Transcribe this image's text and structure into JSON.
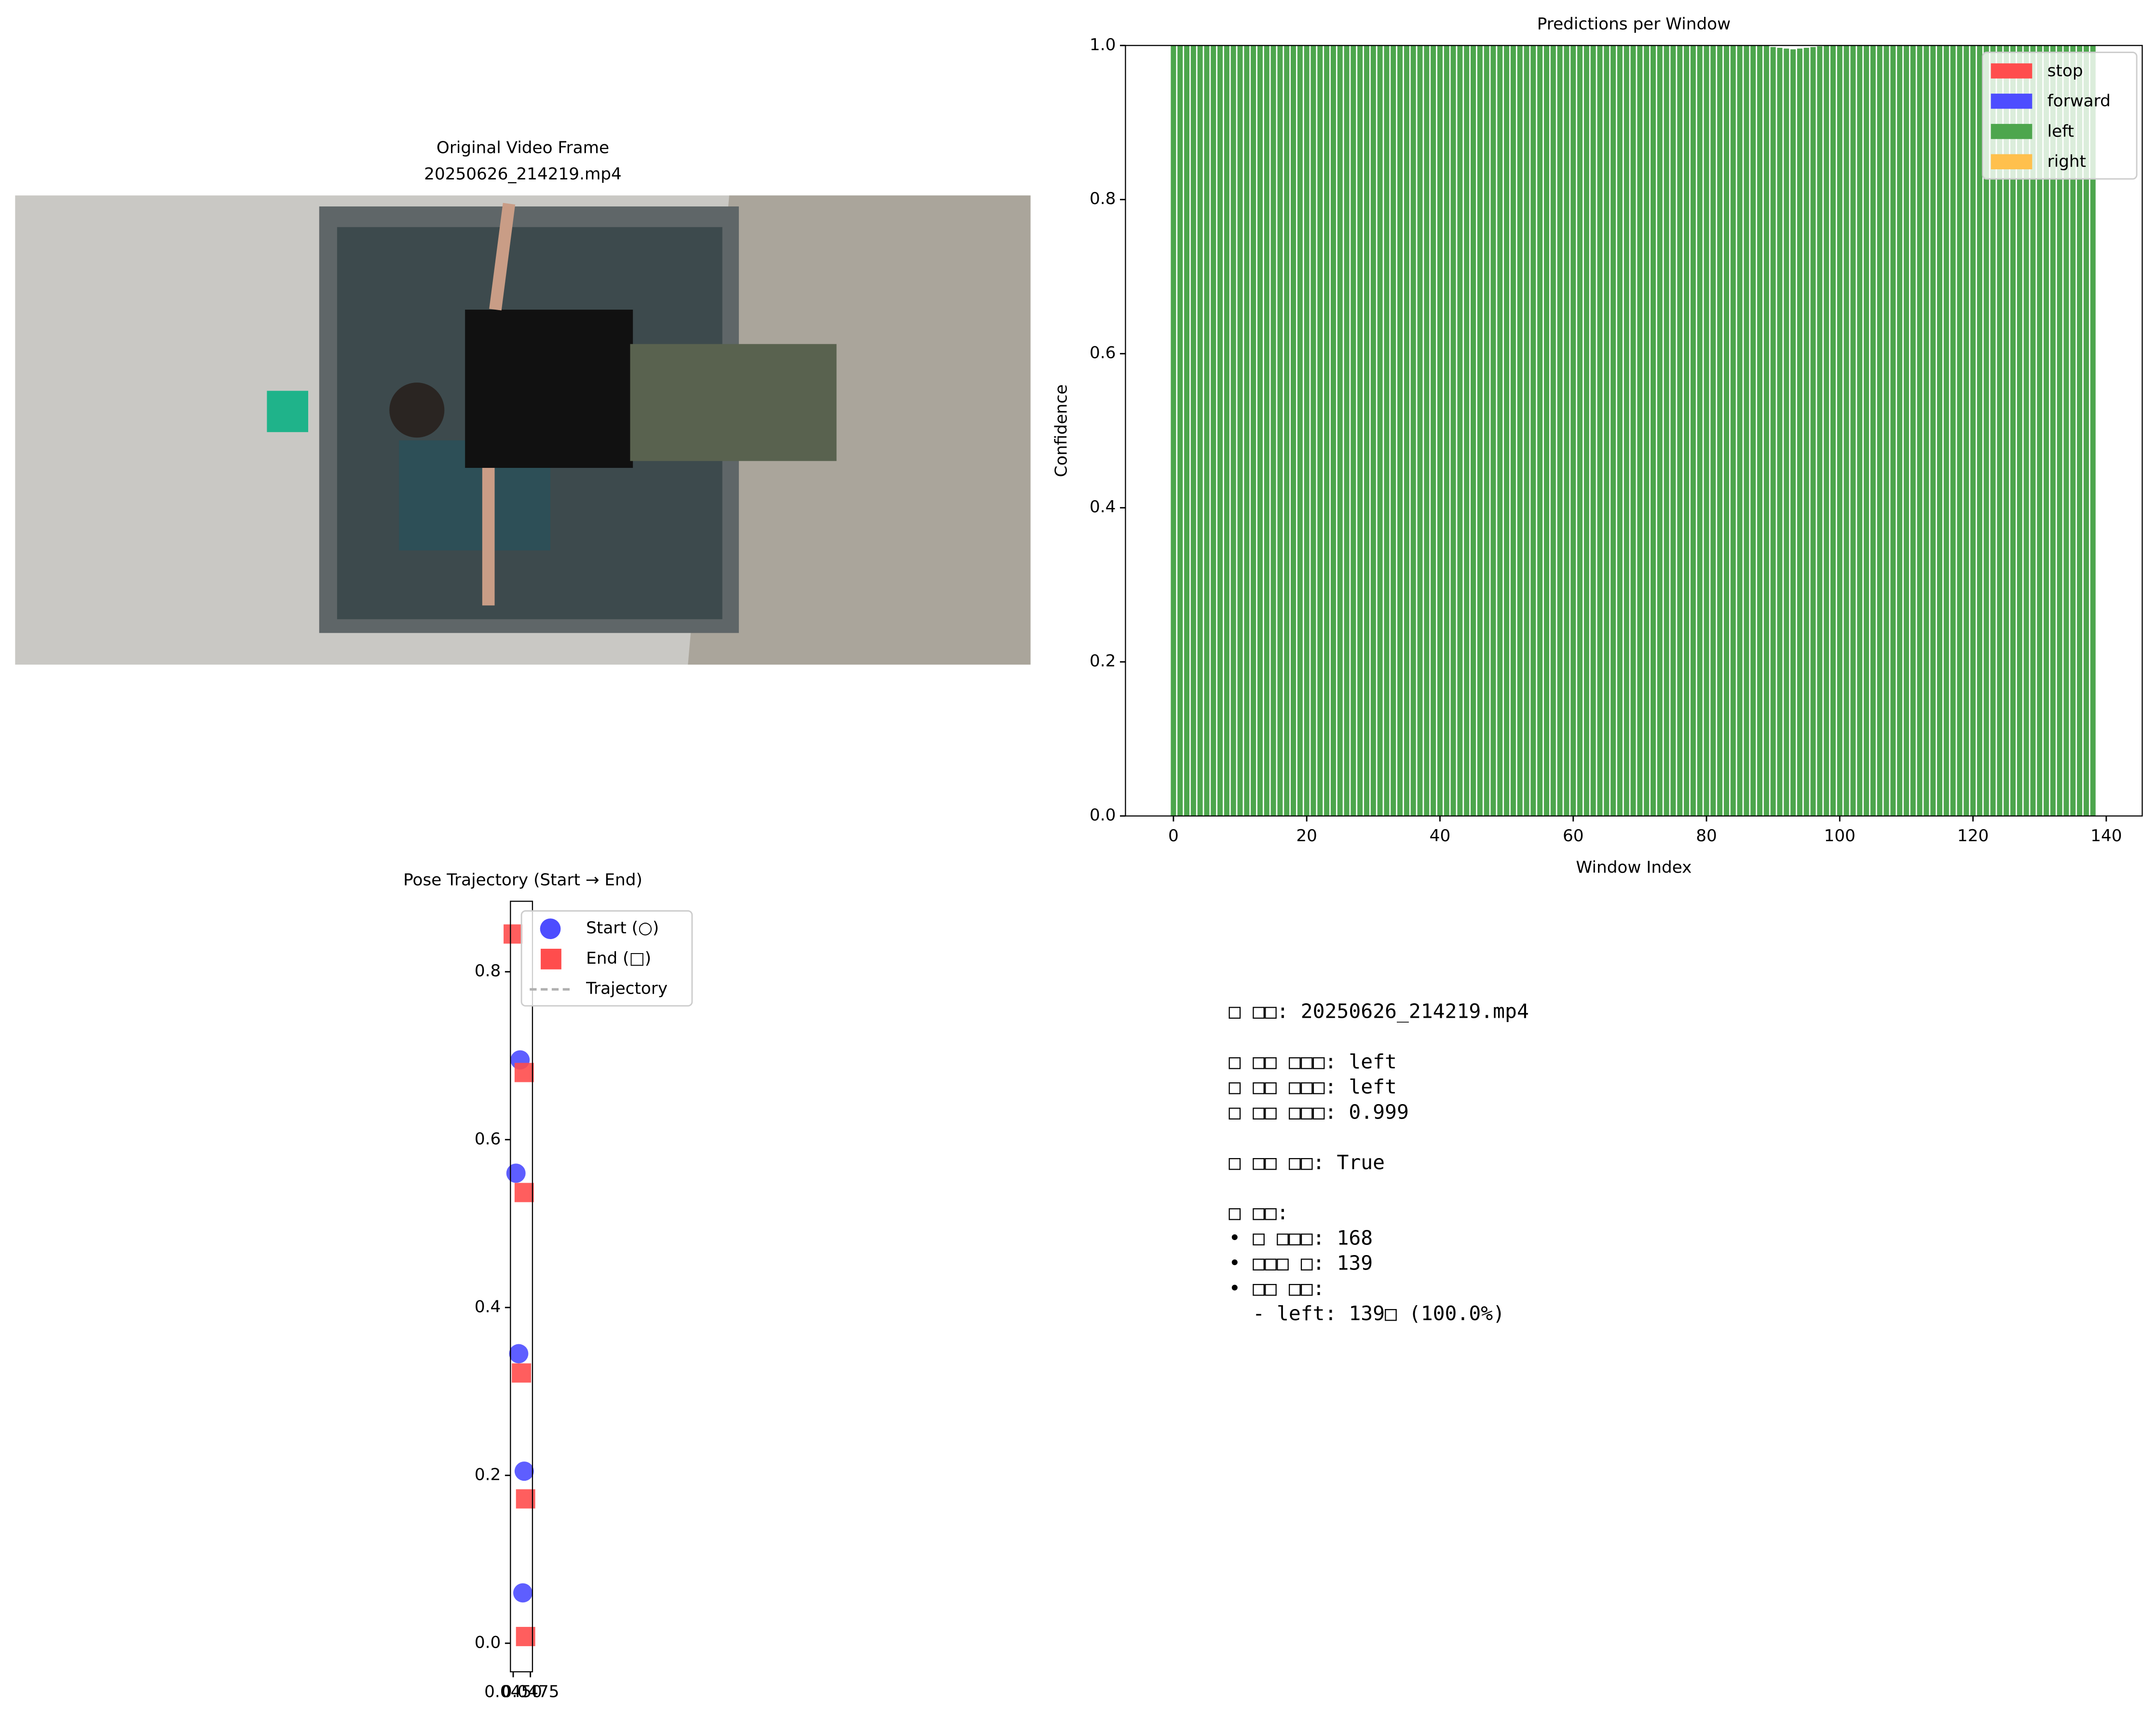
{
  "chart_data": [
    {
      "type": "image",
      "title": [
        "Original Video Frame",
        "20250626_214219.mp4"
      ]
    },
    {
      "type": "bar",
      "stacked": true,
      "title": "Predictions per Window",
      "xlabel": "Window Index",
      "ylabel": "Confidence",
      "x": [
        0,
        1,
        2,
        3,
        4,
        5,
        6,
        7,
        8,
        9,
        10,
        11,
        12,
        13,
        14,
        15,
        16,
        17,
        18,
        19,
        20,
        21,
        22,
        23,
        24,
        25,
        26,
        27,
        28,
        29,
        30,
        31,
        32,
        33,
        34,
        35,
        36,
        37,
        38,
        39,
        40,
        41,
        42,
        43,
        44,
        45,
        46,
        47,
        48,
        49,
        50,
        51,
        52,
        53,
        54,
        55,
        56,
        57,
        58,
        59,
        60,
        61,
        62,
        63,
        64,
        65,
        66,
        67,
        68,
        69,
        70,
        71,
        72,
        73,
        74,
        75,
        76,
        77,
        78,
        79,
        80,
        81,
        82,
        83,
        84,
        85,
        86,
        87,
        88,
        89,
        90,
        91,
        92,
        93,
        94,
        95,
        96,
        97,
        98,
        99,
        100,
        101,
        102,
        103,
        104,
        105,
        106,
        107,
        108,
        109,
        110,
        111,
        112,
        113,
        114,
        115,
        116,
        117,
        118,
        119,
        120,
        121,
        122,
        123,
        124,
        125,
        126,
        127,
        128,
        129,
        130,
        131,
        132,
        133,
        134,
        135,
        136,
        137,
        138
      ],
      "series": [
        {
          "name": "stop",
          "color": "#ff4d4d",
          "values": [
            0,
            0,
            0,
            0,
            0,
            0,
            0,
            0,
            0,
            0,
            0,
            0,
            0,
            0,
            0,
            0,
            0,
            0,
            0,
            0,
            0,
            0,
            0,
            0,
            0,
            0,
            0,
            0,
            0,
            0,
            0,
            0,
            0,
            0,
            0,
            0,
            0,
            0,
            0,
            0,
            0,
            0,
            0,
            0,
            0,
            0,
            0,
            0,
            0,
            0,
            0,
            0,
            0,
            0,
            0,
            0,
            0,
            0,
            0,
            0,
            0,
            0,
            0,
            0,
            0,
            0,
            0,
            0,
            0,
            0,
            0,
            0,
            0,
            0,
            0,
            0,
            0,
            0,
            0,
            0,
            0,
            0,
            0,
            0,
            0,
            0,
            0,
            0,
            0,
            0,
            0,
            0,
            0,
            0,
            0,
            0,
            0,
            0,
            0,
            0,
            0,
            0,
            0,
            0,
            0,
            0,
            0,
            0,
            0,
            0,
            0,
            0,
            0,
            0,
            0,
            0,
            0,
            0,
            0,
            0,
            0,
            0,
            0,
            0,
            0,
            0,
            0,
            0,
            0,
            0,
            0,
            0,
            0,
            0,
            0,
            0,
            0,
            0,
            0
          ]
        },
        {
          "name": "forward",
          "color": "#4d4dff",
          "values": [
            0,
            0,
            0,
            0,
            0,
            0,
            0,
            0,
            0,
            0,
            0,
            0,
            0,
            0,
            0,
            0,
            0,
            0,
            0,
            0,
            0,
            0,
            0,
            0,
            0,
            0,
            0,
            0,
            0,
            0,
            0,
            0,
            0,
            0,
            0,
            0,
            0,
            0,
            0,
            0,
            0,
            0,
            0,
            0,
            0,
            0,
            0,
            0,
            0,
            0,
            0,
            0,
            0,
            0,
            0,
            0,
            0,
            0,
            0,
            0,
            0,
            0,
            0,
            0,
            0,
            0,
            0,
            0,
            0,
            0,
            0,
            0,
            0,
            0,
            0,
            0,
            0,
            0,
            0,
            0,
            0,
            0,
            0,
            0,
            0,
            0,
            0,
            0,
            0,
            0,
            0,
            0,
            0,
            0,
            0,
            0,
            0,
            0,
            0,
            0,
            0,
            0,
            0,
            0,
            0,
            0,
            0,
            0,
            0,
            0,
            0,
            0,
            0,
            0,
            0,
            0,
            0,
            0,
            0,
            0,
            0,
            0,
            0,
            0,
            0,
            0,
            0,
            0,
            0,
            0,
            0,
            0,
            0,
            0,
            0,
            0,
            0,
            0,
            0
          ]
        },
        {
          "name": "left",
          "color": "#4da64d",
          "values": [
            1,
            1,
            1,
            1,
            1,
            1,
            1,
            1,
            1,
            1,
            1,
            1,
            1,
            1,
            1,
            1,
            1,
            1,
            1,
            1,
            1,
            1,
            1,
            1,
            1,
            1,
            1,
            1,
            1,
            1,
            1,
            1,
            1,
            1,
            1,
            1,
            1,
            1,
            1,
            1,
            1,
            1,
            1,
            1,
            1,
            1,
            1,
            1,
            1,
            1,
            1,
            1,
            1,
            1,
            1,
            1,
            1,
            1,
            1,
            1,
            1,
            1,
            1,
            1,
            1,
            1,
            1,
            1,
            1,
            1,
            1,
            1,
            1,
            1,
            1,
            1,
            1,
            1,
            1,
            1,
            1,
            1,
            1,
            1,
            1,
            1,
            1,
            1,
            1,
            1,
            0.998,
            0.997,
            0.996,
            0.995,
            0.996,
            0.997,
            0.998,
            0.999,
            1,
            1,
            1,
            1,
            1,
            1,
            1,
            1,
            1,
            1,
            1,
            1,
            1,
            1,
            1,
            1,
            1,
            1,
            1,
            1,
            1,
            1,
            1,
            1,
            1,
            1,
            1,
            1,
            1,
            1,
            1,
            1,
            1,
            1,
            1,
            1,
            1,
            1,
            1,
            1,
            1
          ]
        },
        {
          "name": "right",
          "color": "#ffc04d",
          "values": [
            0,
            0,
            0,
            0,
            0,
            0,
            0,
            0,
            0,
            0,
            0,
            0,
            0,
            0,
            0,
            0,
            0,
            0,
            0,
            0,
            0,
            0,
            0,
            0,
            0,
            0,
            0,
            0,
            0,
            0,
            0,
            0,
            0,
            0,
            0,
            0,
            0,
            0,
            0,
            0,
            0,
            0,
            0,
            0,
            0,
            0,
            0,
            0,
            0,
            0,
            0,
            0,
            0,
            0,
            0,
            0,
            0,
            0,
            0,
            0,
            0,
            0,
            0,
            0,
            0,
            0,
            0,
            0,
            0,
            0,
            0,
            0,
            0,
            0,
            0,
            0,
            0,
            0,
            0,
            0,
            0,
            0,
            0,
            0,
            0,
            0,
            0,
            0,
            0,
            0,
            0,
            0,
            0,
            0,
            0,
            0,
            0,
            0,
            0,
            0,
            0,
            0,
            0,
            0,
            0,
            0,
            0,
            0,
            0,
            0,
            0,
            0,
            0,
            0,
            0,
            0,
            0,
            0,
            0,
            0,
            0,
            0,
            0,
            0,
            0,
            0,
            0,
            0,
            0,
            0,
            0,
            0,
            0,
            0,
            0,
            0,
            0,
            0,
            0
          ]
        }
      ],
      "xlim": [
        -7.2,
        145.4
      ],
      "xticks": [
        0,
        20,
        40,
        60,
        80,
        100,
        120,
        140
      ],
      "ylim": [
        0,
        1
      ],
      "yticks": [
        {
          "value": 0,
          "label": "0.0"
        },
        {
          "value": 0.2,
          "label": "0.2"
        },
        {
          "value": 0.4,
          "label": "0.4"
        },
        {
          "value": 0.6,
          "label": "0.6"
        },
        {
          "value": 0.8,
          "label": "0.8"
        },
        {
          "value": 1,
          "label": "1.0"
        }
      ],
      "legend": "upper right"
    },
    {
      "type": "scatter",
      "title": "Pose Trajectory (Start → End)",
      "series": [
        {
          "name": "Start (○)",
          "color": "#4d4dff",
          "marker": "circle",
          "x": [
            0.046,
            0.0454,
            0.0458,
            0.0466,
            0.0464
          ],
          "y": [
            0.695,
            0.56,
            0.345,
            0.205,
            0.06
          ]
        },
        {
          "name": "End (□)",
          "color": "#ff4d4d",
          "marker": "square",
          "x": [
            0.045,
            0.0466,
            0.0466,
            0.0462,
            0.0468,
            0.0468
          ],
          "y": [
            0.845,
            0.68,
            0.537,
            0.322,
            0.172,
            0.008
          ]
        },
        {
          "name": "Trajectory",
          "color": "#b0b0b0",
          "marker": "dashed-line"
        }
      ],
      "xlim": [
        0.0446,
        0.0478
      ],
      "xticks": [
        {
          "value": 0.045,
          "label": "0.0450"
        },
        {
          "value": 0.0475,
          "label": "0.0475"
        }
      ],
      "ylim": [
        -0.034,
        0.884
      ],
      "yticks": [
        {
          "value": 0,
          "label": "0.0"
        },
        {
          "value": 0.2,
          "label": "0.2"
        },
        {
          "value": 0.4,
          "label": "0.4"
        },
        {
          "value": 0.6,
          "label": "0.6"
        },
        {
          "value": 0.8,
          "label": "0.8"
        }
      ],
      "legend": "upper right"
    },
    {
      "type": "text",
      "blocks": [
        [
          "□ □□: 20250626_214219.mp4"
        ],
        [
          "□ □□ □□□: left",
          "□ □□ □□□: left",
          "□ □□ □□□: 0.999"
        ],
        [
          "□ □□ □□: True"
        ],
        [
          "□ □□:",
          "• □ □□□: 168",
          "• □□□ □: 139",
          "• □□ □□:",
          "  - left: 139□ (100.0%)"
        ]
      ]
    }
  ]
}
